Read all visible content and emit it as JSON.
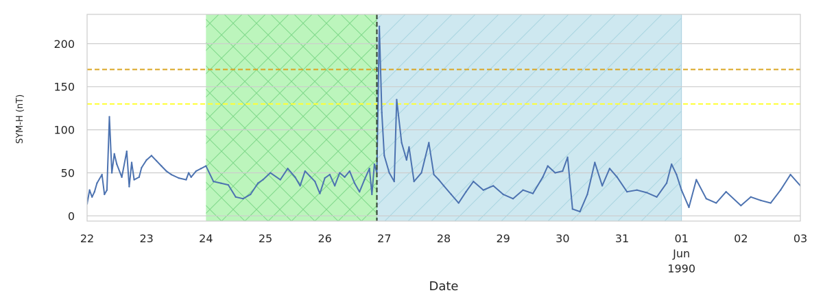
{
  "chart_data": {
    "type": "line",
    "xlabel": "Date",
    "ylabel": "SYM-H (nT)",
    "xlim": [
      "1990-05-22",
      "1990-06-03"
    ],
    "ylim": [
      -6,
      234
    ],
    "grid": true,
    "x_tick_labels": [
      {
        "date": "1990-05-22",
        "lines": [
          "22"
        ]
      },
      {
        "date": "1990-05-23",
        "lines": [
          "23"
        ]
      },
      {
        "date": "1990-05-24",
        "lines": [
          "24"
        ]
      },
      {
        "date": "1990-05-25",
        "lines": [
          "25"
        ]
      },
      {
        "date": "1990-05-26",
        "lines": [
          "26"
        ]
      },
      {
        "date": "1990-05-27",
        "lines": [
          "27"
        ]
      },
      {
        "date": "1990-05-28",
        "lines": [
          "28"
        ]
      },
      {
        "date": "1990-05-29",
        "lines": [
          "29"
        ]
      },
      {
        "date": "1990-05-30",
        "lines": [
          "30"
        ]
      },
      {
        "date": "1990-05-31",
        "lines": [
          "31"
        ]
      },
      {
        "date": "1990-06-01",
        "lines": [
          "01",
          "Jun",
          "1990"
        ]
      },
      {
        "date": "1990-06-02",
        "lines": [
          "02"
        ]
      },
      {
        "date": "1990-06-03",
        "lines": [
          "03"
        ]
      }
    ],
    "y_ticks": [
      0,
      50,
      100,
      150,
      200
    ],
    "shaded_regions": [
      {
        "start": "1990-05-24 00:00",
        "end": "1990-05-26 21:00",
        "color": "#90ee90",
        "hatch": "x"
      },
      {
        "start": "1990-05-26 21:00",
        "end": "1990-06-01 00:00",
        "color": "#add8e6",
        "hatch": "/"
      }
    ],
    "reference_lines": [
      {
        "y": 170,
        "color": "#daa520",
        "style": "dashed"
      },
      {
        "y": 130,
        "color": "#ffff33",
        "style": "dashed"
      }
    ],
    "event_line": {
      "x": "1990-05-26 21:00",
      "color": "#3a4a3a",
      "style": "dashed"
    },
    "series": [
      {
        "color": "#4c72b0",
        "x": [
          "1990-05-22 00:00",
          "1990-05-22 01:00",
          "1990-05-22 02:00",
          "1990-05-22 03:00",
          "1990-05-22 04:00",
          "1990-05-22 06:00",
          "1990-05-22 07:00",
          "1990-05-22 08:00",
          "1990-05-22 09:00",
          "1990-05-22 10:00",
          "1990-05-22 11:00",
          "1990-05-22 12:00",
          "1990-05-22 14:00",
          "1990-05-22 16:00",
          "1990-05-22 17:00",
          "1990-05-22 18:00",
          "1990-05-22 19:00",
          "1990-05-22 21:00",
          "1990-05-22 22:00",
          "1990-05-23 00:00",
          "1990-05-23 02:00",
          "1990-05-23 04:00",
          "1990-05-23 06:00",
          "1990-05-23 08:00",
          "1990-05-23 10:00",
          "1990-05-23 13:00",
          "1990-05-23 16:00",
          "1990-05-23 17:00",
          "1990-05-23 18:00",
          "1990-05-23 20:00",
          "1990-05-23 22:00",
          "1990-05-24 00:00",
          "1990-05-24 03:00",
          "1990-05-24 06:00",
          "1990-05-24 09:00",
          "1990-05-24 12:00",
          "1990-05-24 15:00",
          "1990-05-24 18:00",
          "1990-05-24 21:00",
          "1990-05-24 23:00",
          "1990-05-25 02:00",
          "1990-05-25 06:00",
          "1990-05-25 09:00",
          "1990-05-25 12:00",
          "1990-05-25 14:00",
          "1990-05-25 16:00",
          "1990-05-25 18:00",
          "1990-05-25 20:00",
          "1990-05-25 22:00",
          "1990-05-26 00:00",
          "1990-05-26 02:00",
          "1990-05-26 04:00",
          "1990-05-26 06:00",
          "1990-05-26 08:00",
          "1990-05-26 10:00",
          "1990-05-26 12:00",
          "1990-05-26 14:00",
          "1990-05-26 16:00",
          "1990-05-26 18:00",
          "1990-05-26 19:00",
          "1990-05-26 20:00",
          "1990-05-26 21:00",
          "1990-05-26 22:00",
          "1990-05-26 23:00",
          "1990-05-27 00:00",
          "1990-05-27 02:00",
          "1990-05-27 04:00",
          "1990-05-27 05:00",
          "1990-05-27 07:00",
          "1990-05-27 09:00",
          "1990-05-27 10:00",
          "1990-05-27 12:00",
          "1990-05-27 15:00",
          "1990-05-27 18:00",
          "1990-05-27 20:00",
          "1990-05-27 22:00",
          "1990-05-28 00:00",
          "1990-05-28 03:00",
          "1990-05-28 06:00",
          "1990-05-28 09:00",
          "1990-05-28 12:00",
          "1990-05-28 16:00",
          "1990-05-28 20:00",
          "1990-05-29 00:00",
          "1990-05-29 04:00",
          "1990-05-29 08:00",
          "1990-05-29 12:00",
          "1990-05-29 16:00",
          "1990-05-29 18:00",
          "1990-05-29 21:00",
          "1990-05-30 00:00",
          "1990-05-30 02:00",
          "1990-05-30 04:00",
          "1990-05-30 07:00",
          "1990-05-30 10:00",
          "1990-05-30 13:00",
          "1990-05-30 16:00",
          "1990-05-30 19:00",
          "1990-05-30 22:00",
          "1990-05-31 02:00",
          "1990-05-31 06:00",
          "1990-05-31 10:00",
          "1990-05-31 14:00",
          "1990-05-31 18:00",
          "1990-05-31 20:00",
          "1990-05-31 22:00",
          "1990-06-01 00:00",
          "1990-06-01 03:00",
          "1990-06-01 06:00",
          "1990-06-01 10:00",
          "1990-06-01 14:00",
          "1990-06-01 18:00",
          "1990-06-02 00:00",
          "1990-06-02 04:00",
          "1990-06-02 08:00",
          "1990-06-02 12:00",
          "1990-06-02 16:00",
          "1990-06-02 20:00",
          "1990-06-03 00:00"
        ],
        "y": [
          14,
          30,
          22,
          28,
          38,
          48,
          25,
          30,
          115,
          50,
          72,
          60,
          45,
          75,
          34,
          62,
          42,
          45,
          56,
          65,
          70,
          64,
          58,
          52,
          48,
          44,
          42,
          50,
          45,
          52,
          55,
          58,
          40,
          38,
          36,
          22,
          20,
          25,
          38,
          42,
          50,
          42,
          55,
          45,
          35,
          52,
          46,
          40,
          26,
          44,
          48,
          35,
          50,
          45,
          52,
          38,
          28,
          42,
          55,
          25,
          60,
          50,
          220,
          120,
          70,
          50,
          40,
          135,
          85,
          65,
          80,
          40,
          50,
          85,
          48,
          42,
          35,
          25,
          15,
          28,
          40,
          30,
          35,
          25,
          20,
          30,
          26,
          45,
          58,
          50,
          52,
          68,
          8,
          5,
          25,
          62,
          35,
          55,
          45,
          28,
          30,
          27,
          22,
          38,
          60,
          48,
          30,
          10,
          42,
          20,
          15,
          28,
          12,
          22,
          18,
          15,
          30,
          48,
          35
        ]
      }
    ]
  }
}
